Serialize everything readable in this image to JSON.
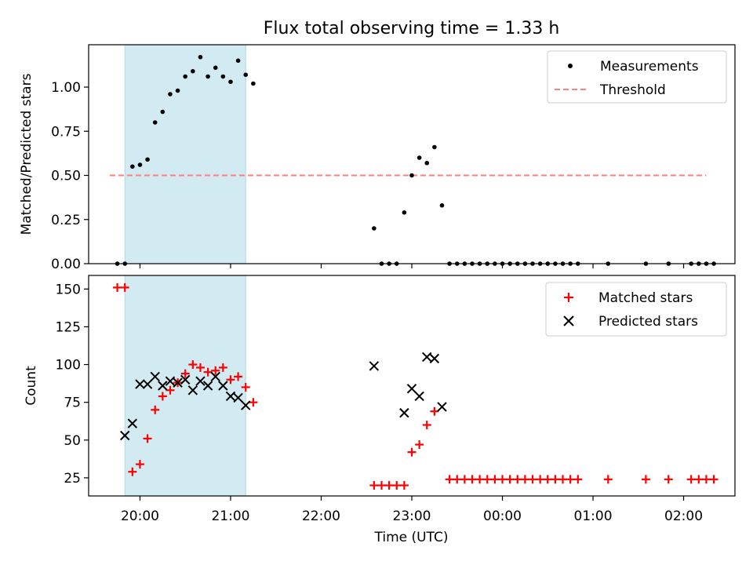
{
  "colors": {
    "measurements": "#000000",
    "threshold": "#ff7f7f",
    "matched": "#ff0000",
    "predicted": "#000000",
    "shade": "#add8e6"
  },
  "chart_data": [
    {
      "type": "scatter",
      "title": "Flux total observing time = 1.33 h",
      "xlabel": "",
      "ylabel": "Matched/Predicted stars",
      "xlim": [
        "19:26",
        "02:34"
      ],
      "ylim": [
        0,
        1.24
      ],
      "yticks": [
        0.0,
        0.25,
        0.5,
        0.75,
        1.0
      ],
      "ytick_labels": [
        "0.00",
        "0.25",
        "0.50",
        "0.75",
        "1.00"
      ],
      "grid": false,
      "legend_position": "top-right",
      "legend": [
        "Measurements",
        "Threshold"
      ],
      "shaded_interval": [
        "19:50",
        "21:10"
      ],
      "threshold": {
        "value": 0.5,
        "x": [
          "19:40",
          "02:15"
        ]
      },
      "series": [
        {
          "name": "Measurements",
          "marker": "dot",
          "points": [
            [
              "19:45",
              0
            ],
            [
              "19:50",
              0
            ],
            [
              "19:55",
              0.55
            ],
            [
              "20:00",
              0.56
            ],
            [
              "20:05",
              0.59
            ],
            [
              "20:10",
              0.8
            ],
            [
              "20:15",
              0.86
            ],
            [
              "20:20",
              0.96
            ],
            [
              "20:25",
              0.98
            ],
            [
              "20:30",
              1.06
            ],
            [
              "20:35",
              1.09
            ],
            [
              "20:40",
              1.17
            ],
            [
              "20:45",
              1.06
            ],
            [
              "20:50",
              1.11
            ],
            [
              "20:55",
              1.06
            ],
            [
              "21:00",
              1.03
            ],
            [
              "21:05",
              1.15
            ],
            [
              "21:10",
              1.07
            ],
            [
              "21:15",
              1.02
            ],
            [
              "22:35",
              0.2
            ],
            [
              "22:40",
              0
            ],
            [
              "22:45",
              0
            ],
            [
              "22:50",
              0
            ],
            [
              "22:55",
              0.29
            ],
            [
              "23:00",
              0.5
            ],
            [
              "23:05",
              0.6
            ],
            [
              "23:10",
              0.57
            ],
            [
              "23:15",
              0.66
            ],
            [
              "23:20",
              0.33
            ],
            [
              "23:25",
              0
            ],
            [
              "23:30",
              0
            ],
            [
              "23:35",
              0
            ],
            [
              "23:40",
              0
            ],
            [
              "23:45",
              0
            ],
            [
              "23:50",
              0
            ],
            [
              "23:55",
              0
            ],
            [
              "00:00",
              0
            ],
            [
              "00:05",
              0
            ],
            [
              "00:10",
              0
            ],
            [
              "00:15",
              0
            ],
            [
              "00:20",
              0
            ],
            [
              "00:25",
              0
            ],
            [
              "00:30",
              0
            ],
            [
              "00:35",
              0
            ],
            [
              "00:40",
              0
            ],
            [
              "00:45",
              0
            ],
            [
              "00:50",
              0
            ],
            [
              "01:10",
              0
            ],
            [
              "01:35",
              0
            ],
            [
              "01:50",
              0
            ],
            [
              "02:05",
              0
            ],
            [
              "02:10",
              0
            ],
            [
              "02:15",
              0
            ],
            [
              "02:20",
              0
            ]
          ]
        }
      ]
    },
    {
      "type": "scatter",
      "title": "",
      "xlabel": "Time (UTC)",
      "ylabel": "Count",
      "xlim": [
        "19:26",
        "02:34"
      ],
      "ylim": [
        13,
        159
      ],
      "yticks": [
        25,
        50,
        75,
        100,
        125,
        150
      ],
      "ytick_labels": [
        "25",
        "50",
        "75",
        "100",
        "125",
        "150"
      ],
      "xticks": [
        "20:00",
        "21:00",
        "22:00",
        "23:00",
        "00:00",
        "01:00",
        "02:00"
      ],
      "grid": false,
      "legend_position": "top-right",
      "shaded_interval": [
        "19:50",
        "21:10"
      ],
      "series": [
        {
          "name": "Matched stars",
          "marker": "plus",
          "points": [
            [
              "19:45",
              151
            ],
            [
              "19:50",
              151
            ],
            [
              "19:55",
              29
            ],
            [
              "20:00",
              34
            ],
            [
              "20:05",
              51
            ],
            [
              "20:10",
              70
            ],
            [
              "20:15",
              79
            ],
            [
              "20:20",
              83
            ],
            [
              "20:25",
              88
            ],
            [
              "20:30",
              94
            ],
            [
              "20:35",
              100
            ],
            [
              "20:40",
              98
            ],
            [
              "20:45",
              95
            ],
            [
              "20:50",
              96
            ],
            [
              "20:55",
              98
            ],
            [
              "21:00",
              90
            ],
            [
              "21:05",
              92
            ],
            [
              "21:10",
              85
            ],
            [
              "21:15",
              75
            ],
            [
              "22:35",
              20
            ],
            [
              "22:40",
              20
            ],
            [
              "22:45",
              20
            ],
            [
              "22:50",
              20
            ],
            [
              "22:55",
              20
            ],
            [
              "23:00",
              42
            ],
            [
              "23:05",
              47
            ],
            [
              "23:10",
              60
            ],
            [
              "23:15",
              69
            ],
            [
              "23:25",
              24
            ],
            [
              "23:30",
              24
            ],
            [
              "23:35",
              24
            ],
            [
              "23:40",
              24
            ],
            [
              "23:45",
              24
            ],
            [
              "23:50",
              24
            ],
            [
              "23:55",
              24
            ],
            [
              "00:00",
              24
            ],
            [
              "00:05",
              24
            ],
            [
              "00:10",
              24
            ],
            [
              "00:15",
              24
            ],
            [
              "00:20",
              24
            ],
            [
              "00:25",
              24
            ],
            [
              "00:30",
              24
            ],
            [
              "00:35",
              24
            ],
            [
              "00:40",
              24
            ],
            [
              "00:45",
              24
            ],
            [
              "00:50",
              24
            ],
            [
              "01:10",
              24
            ],
            [
              "01:35",
              24
            ],
            [
              "01:50",
              24
            ],
            [
              "02:05",
              24
            ],
            [
              "02:10",
              24
            ],
            [
              "02:15",
              24
            ],
            [
              "02:20",
              24
            ]
          ]
        },
        {
          "name": "Predicted stars",
          "marker": "x",
          "points": [
            [
              "19:50",
              53
            ],
            [
              "19:55",
              61
            ],
            [
              "20:00",
              87
            ],
            [
              "20:05",
              87
            ],
            [
              "20:10",
              92
            ],
            [
              "20:15",
              86
            ],
            [
              "20:20",
              89
            ],
            [
              "20:25",
              88
            ],
            [
              "20:30",
              90
            ],
            [
              "20:35",
              83
            ],
            [
              "20:40",
              89
            ],
            [
              "20:45",
              86
            ],
            [
              "20:50",
              92
            ],
            [
              "20:55",
              86
            ],
            [
              "21:00",
              79
            ],
            [
              "21:05",
              78
            ],
            [
              "21:10",
              73
            ],
            [
              "22:35",
              99
            ],
            [
              "22:55",
              68
            ],
            [
              "23:00",
              84
            ],
            [
              "23:05",
              79
            ],
            [
              "23:10",
              105
            ],
            [
              "23:15",
              104
            ],
            [
              "23:20",
              72
            ]
          ]
        }
      ]
    }
  ]
}
